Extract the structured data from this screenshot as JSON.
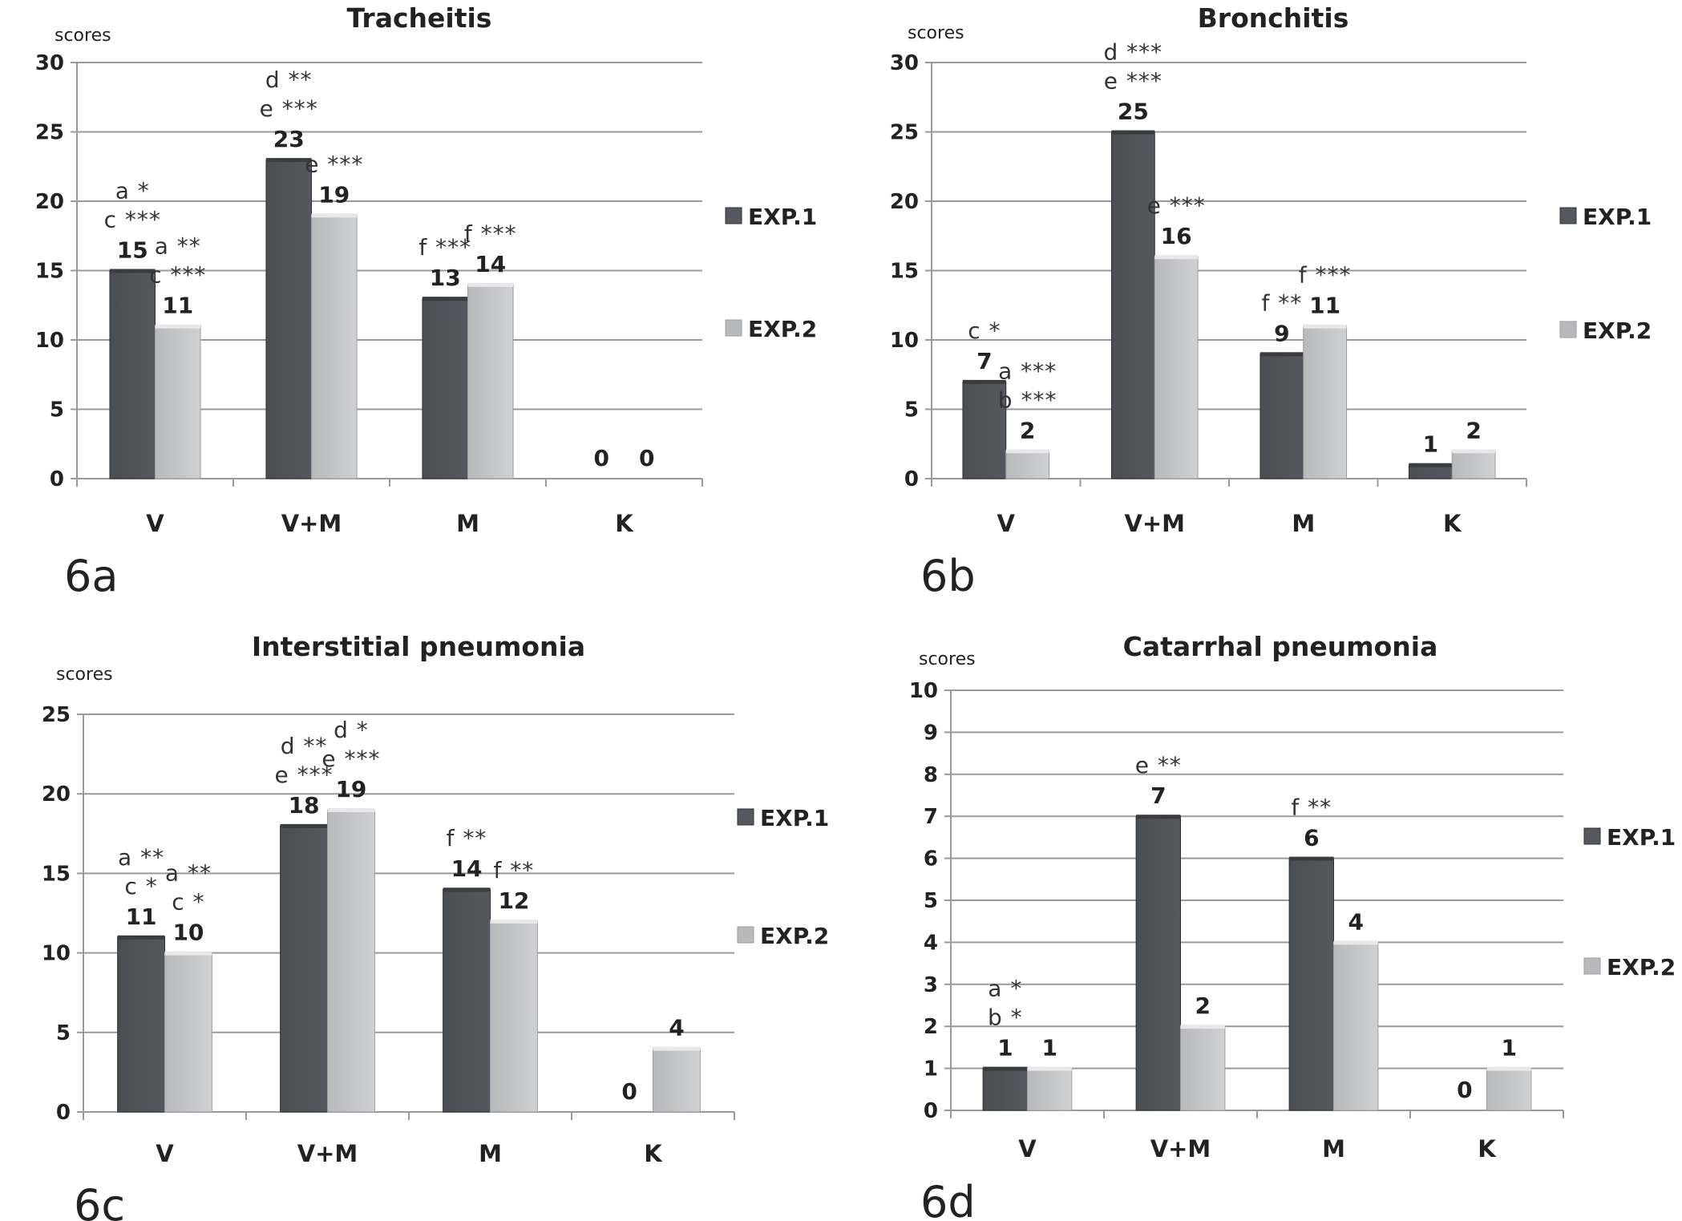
{
  "colors": {
    "exp1": "#55585e",
    "exp1_top": "#3a3c40",
    "exp2": "#b8b9bb",
    "exp2_top": "#e8e8ea",
    "grid": "#9a9a9a",
    "text": "#222222"
  },
  "chart_data": [
    {
      "type": "bar",
      "panel": "6a",
      "title": "Tracheitis",
      "ylabel": "scores",
      "ylim": [
        0,
        30
      ],
      "yticks": [
        "0",
        "5",
        "10",
        "15",
        "20",
        "25",
        "30"
      ],
      "categories": [
        "V",
        "V+M",
        "M",
        "K"
      ],
      "series": [
        {
          "name": "EXP.1",
          "values": [
            15,
            23,
            13,
            0
          ]
        },
        {
          "name": "EXP.2",
          "values": [
            11,
            19,
            14,
            0
          ]
        }
      ],
      "annotations": [
        {
          "category": 0,
          "series": 0,
          "lines": [
            "a *",
            "c ***"
          ]
        },
        {
          "category": 0,
          "series": 1,
          "lines": [
            "a **",
            "c ***"
          ]
        },
        {
          "category": 1,
          "series": 0,
          "lines": [
            "d **",
            "e ***"
          ]
        },
        {
          "category": 1,
          "series": 1,
          "lines": [
            "e ***"
          ]
        },
        {
          "category": 2,
          "series": 0,
          "lines": [
            "f ***"
          ]
        },
        {
          "category": 2,
          "series": 1,
          "lines": [
            "f ***"
          ]
        }
      ],
      "grid": true,
      "legend": "right"
    },
    {
      "type": "bar",
      "panel": "6b",
      "title": "Bronchitis",
      "ylabel": "scores",
      "ylim": [
        0,
        30
      ],
      "yticks": [
        "0",
        "5",
        "10",
        "15",
        "20",
        "25",
        "30"
      ],
      "categories": [
        "V",
        "V+M",
        "M",
        "K"
      ],
      "series": [
        {
          "name": "EXP.1",
          "values": [
            7,
            25,
            9,
            1
          ]
        },
        {
          "name": "EXP.2",
          "values": [
            2,
            16,
            11,
            2
          ]
        }
      ],
      "annotations": [
        {
          "category": 0,
          "series": 0,
          "lines": [
            "c *"
          ]
        },
        {
          "category": 0,
          "series": 1,
          "lines": [
            "a ***",
            "b ***"
          ]
        },
        {
          "category": 1,
          "series": 0,
          "lines": [
            "d ***",
            "e ***"
          ]
        },
        {
          "category": 1,
          "series": 1,
          "lines": [
            "e ***"
          ]
        },
        {
          "category": 2,
          "series": 0,
          "lines": [
            "f **"
          ]
        },
        {
          "category": 2,
          "series": 1,
          "lines": [
            "f ***"
          ]
        }
      ],
      "grid": true,
      "legend": "right"
    },
    {
      "type": "bar",
      "panel": "6c",
      "title": "Interstitial pneumonia",
      "ylabel": "scores",
      "ylim": [
        0,
        25
      ],
      "yticks": [
        "0",
        "5",
        "10",
        "15",
        "20",
        "25"
      ],
      "categories": [
        "V",
        "V+M",
        "M",
        "K"
      ],
      "series": [
        {
          "name": "EXP.1",
          "values": [
            11,
            18,
            14,
            0
          ]
        },
        {
          "name": "EXP.2",
          "values": [
            10,
            19,
            12,
            4
          ]
        }
      ],
      "annotations": [
        {
          "category": 0,
          "series": 0,
          "lines": [
            "a **",
            "c *"
          ]
        },
        {
          "category": 0,
          "series": 1,
          "lines": [
            "a **",
            "c *"
          ]
        },
        {
          "category": 1,
          "series": 0,
          "lines": [
            "d **",
            "e ***"
          ]
        },
        {
          "category": 1,
          "series": 1,
          "lines": [
            "d *",
            "e ***"
          ]
        },
        {
          "category": 2,
          "series": 0,
          "lines": [
            "f **"
          ]
        },
        {
          "category": 2,
          "series": 1,
          "lines": [
            "f **"
          ]
        }
      ],
      "grid": true,
      "legend": "right"
    },
    {
      "type": "bar",
      "panel": "6d",
      "title": "Catarrhal pneumonia",
      "ylabel": "scores",
      "ylim": [
        0,
        10
      ],
      "yticks": [
        "0",
        "1",
        "2",
        "3",
        "4",
        "5",
        "6",
        "7",
        "8",
        "9",
        "10"
      ],
      "categories": [
        "V",
        "V+M",
        "M",
        "K"
      ],
      "series": [
        {
          "name": "EXP.1",
          "values": [
            1,
            7,
            6,
            0
          ]
        },
        {
          "name": "EXP.2",
          "values": [
            1,
            2,
            4,
            1
          ]
        }
      ],
      "annotations": [
        {
          "category": 0,
          "series": 0,
          "lines": [
            "a *",
            "b *"
          ]
        },
        {
          "category": 1,
          "series": 0,
          "lines": [
            "e **"
          ]
        },
        {
          "category": 2,
          "series": 0,
          "lines": [
            "f **"
          ]
        }
      ],
      "grid": true,
      "legend": "right"
    }
  ]
}
